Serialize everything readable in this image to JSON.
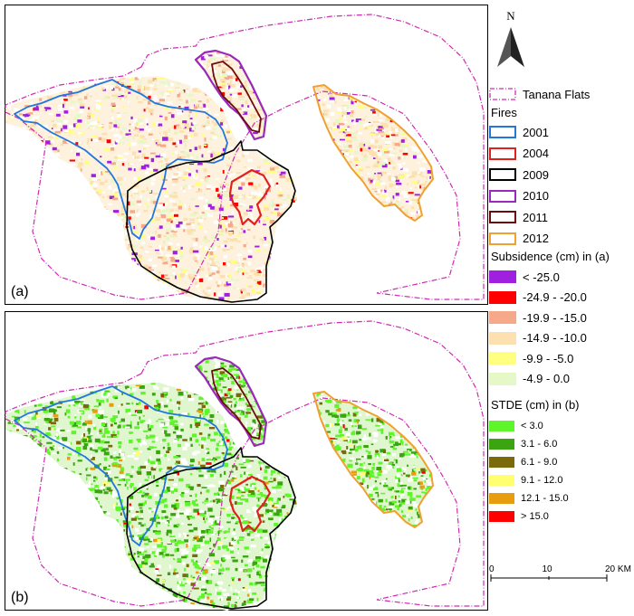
{
  "panels": [
    {
      "id": "a",
      "label": "(a)",
      "mode": "subsidence"
    },
    {
      "id": "b",
      "label": "(b)",
      "mode": "stde"
    }
  ],
  "north_arrow": {
    "label": "N",
    "icon": "north-arrow-icon"
  },
  "legend": {
    "boundary": {
      "label": "Tanana Flats",
      "color": "#d02ab0"
    },
    "fires_title": "Fires",
    "fires": [
      {
        "year": "2001",
        "color": "#2277dd"
      },
      {
        "year": "2004",
        "color": "#e0201d"
      },
      {
        "year": "2009",
        "color": "#000000"
      },
      {
        "year": "2010",
        "color": "#9a28bb"
      },
      {
        "year": "2011",
        "color": "#6b0d0d"
      },
      {
        "year": "2012",
        "color": "#f0a030"
      }
    ],
    "subsidence_title": "Subsidence (cm) in (a)",
    "subsidence": [
      {
        "label": "< -25.0",
        "color": "#a020e0"
      },
      {
        "label": "-24.9 - -20.0",
        "color": "#ff0000"
      },
      {
        "label": "-19.9 - -15.0",
        "color": "#f5a88a"
      },
      {
        "label": "-14.9 - -10.0",
        "color": "#fde0b0"
      },
      {
        "label": "-9.9 - -5.0",
        "color": "#ffff80"
      },
      {
        "label": "-4.9 - 0.0",
        "color": "#e6f7c8"
      }
    ],
    "stde_title": "STDE (cm) in (b)",
    "stde": [
      {
        "label": "< 3.0",
        "color": "#5ef52a"
      },
      {
        "label": "3.1 - 6.0",
        "color": "#3aa510"
      },
      {
        "label": "6.1 - 9.0",
        "color": "#7b6a0c"
      },
      {
        "label": "9.1 - 12.0",
        "color": "#ffff70"
      },
      {
        "label": "12.1 - 15.0",
        "color": "#e89c10"
      },
      {
        "label": "> 15.0",
        "color": "#ff0000"
      }
    ]
  },
  "scale_bar": {
    "ticks": [
      "0",
      "10",
      "20 KM"
    ]
  }
}
